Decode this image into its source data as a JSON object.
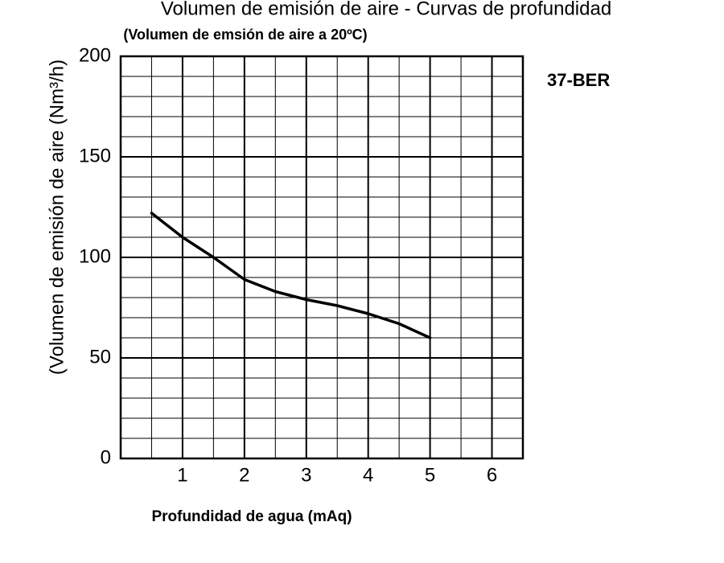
{
  "chart_data": {
    "type": "line",
    "title": "Volumen de emisión de aire - Curvas de profundidad",
    "subtitle": "(Volumen de emsión de aire a 20ºC)",
    "y_label": "(Volumen de emisión de aire (Nm³/h)",
    "x_label": "Profundidad de agua (mAq)",
    "annotation": "37-BER",
    "x": [
      0.5,
      1,
      1.5,
      2,
      2.5,
      3,
      3.5,
      4,
      4.5,
      5
    ],
    "series": [
      {
        "name": "37-BER",
        "color": "#000000",
        "values": [
          122,
          110,
          100,
          89,
          83,
          79,
          76,
          72,
          67,
          60
        ]
      }
    ],
    "xlim": [
      0,
      6.5
    ],
    "xticks": [
      1,
      2,
      3,
      4,
      5,
      6
    ],
    "ylim": [
      0,
      200
    ],
    "yticks": [
      0,
      50,
      100,
      150,
      200
    ],
    "grid": true
  }
}
